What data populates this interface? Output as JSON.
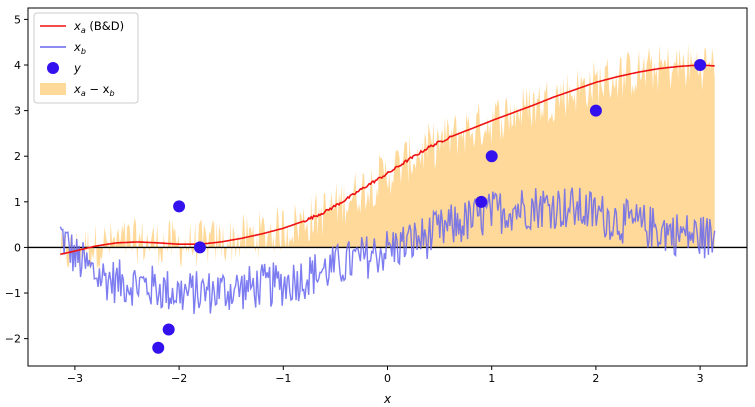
{
  "chart_data": {
    "type": "line",
    "title": "",
    "xlabel": "x",
    "ylabel": "",
    "xlim": [
      -3.45,
      3.45
    ],
    "ylim": [
      -2.6,
      5.25
    ],
    "xticks": [
      -3,
      -2,
      -1,
      0,
      1,
      2,
      3
    ],
    "yticks": [
      -2,
      -1,
      0,
      1,
      2,
      3,
      4,
      5
    ],
    "xtick_labels": [
      "−3",
      "−2",
      "−1",
      "0",
      "1",
      "2",
      "3"
    ],
    "ytick_labels": [
      "−2",
      "−1",
      "0",
      "1",
      "2",
      "3",
      "4",
      "5"
    ],
    "grid": false,
    "legend_position": "top-left",
    "colors": {
      "xa": "#ee1111",
      "xb": "#6666ee",
      "y": "#3311ee",
      "fill": "#ffcc77",
      "zero_line": "#000000"
    },
    "legend": [
      {
        "key": "xa",
        "label_main": "x",
        "label_sub": "a",
        "label_suffix": " (B&D)"
      },
      {
        "key": "xb",
        "label_main": "x",
        "label_sub": "b",
        "label_suffix": ""
      },
      {
        "key": "y",
        "label_main": "y",
        "label_sub": "",
        "label_suffix": ""
      },
      {
        "key": "fill",
        "label_main": "x",
        "label_sub": "a",
        "label_suffix": " − x",
        "label_sub2": "b"
      }
    ],
    "series": [
      {
        "key": "xa",
        "x": [
          -3.14,
          -3.0,
          -2.8,
          -2.6,
          -2.4,
          -2.2,
          -2.0,
          -1.8,
          -1.6,
          -1.4,
          -1.2,
          -1.0,
          -0.8,
          -0.6,
          -0.4,
          -0.2,
          0.0,
          0.2,
          0.4,
          0.6,
          0.8,
          1.0,
          1.2,
          1.4,
          1.6,
          1.8,
          2.0,
          2.2,
          2.4,
          2.6,
          2.8,
          3.0,
          3.14
        ],
        "y": [
          -0.15,
          -0.08,
          0.03,
          0.1,
          0.12,
          0.1,
          0.07,
          0.07,
          0.12,
          0.2,
          0.3,
          0.42,
          0.58,
          0.78,
          1.05,
          1.35,
          1.62,
          1.92,
          2.2,
          2.42,
          2.6,
          2.78,
          2.95,
          3.12,
          3.3,
          3.46,
          3.62,
          3.74,
          3.84,
          3.92,
          3.97,
          4.0,
          3.98
        ]
      },
      {
        "key": "xb",
        "x": [
          -3.14,
          -3.0,
          -2.8,
          -2.6,
          -2.4,
          -2.2,
          -2.0,
          -1.8,
          -1.6,
          -1.4,
          -1.2,
          -1.0,
          -0.8,
          -0.6,
          -0.4,
          -0.2,
          0.0,
          0.2,
          0.4,
          0.6,
          0.8,
          1.0,
          1.2,
          1.4,
          1.6,
          1.8,
          2.0,
          2.2,
          2.4,
          2.6,
          2.8,
          3.0,
          3.14
        ],
        "y": [
          0.3,
          -0.2,
          -0.6,
          -0.75,
          -0.8,
          -0.9,
          -1.0,
          -1.0,
          -0.95,
          -0.9,
          -0.85,
          -0.8,
          -0.65,
          -0.5,
          -0.35,
          -0.2,
          -0.05,
          0.1,
          0.25,
          0.45,
          0.6,
          0.75,
          0.85,
          0.9,
          0.9,
          0.85,
          0.75,
          0.6,
          0.5,
          0.4,
          0.3,
          0.25,
          0.2
        ]
      },
      {
        "key": "y",
        "type": "scatter",
        "x": [
          -2.2,
          -2.1,
          -2.0,
          -1.8,
          0.9,
          1.0,
          2.0,
          3.0
        ],
        "y": [
          -2.2,
          -1.8,
          0.9,
          0.0,
          1.0,
          2.0,
          3.0,
          4.0
        ]
      }
    ],
    "fill_between": {
      "key": "fill",
      "upper": "xa",
      "lower": "xb",
      "noise_amplitude": 0.55
    },
    "noise_amplitude_xb": 0.5,
    "hline": 0
  }
}
